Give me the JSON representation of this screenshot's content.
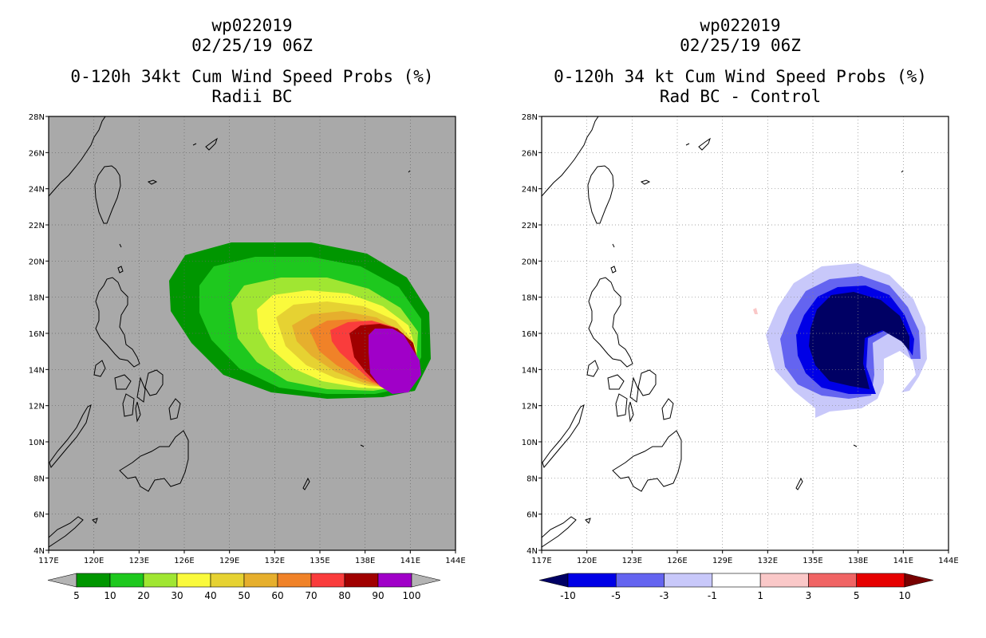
{
  "left_panel": {
    "title_storm": "wp022019",
    "title_date": "02/25/19 06Z",
    "title_main": "0-120h 34kt Cum Wind Speed Probs (%)",
    "title_sub": "Radii BC",
    "lat_labels": [
      "28N",
      "26N",
      "24N",
      "22N",
      "20N",
      "18N",
      "16N",
      "14N",
      "12N",
      "10N",
      "8N",
      "6N",
      "4N"
    ],
    "lon_labels": [
      "117E",
      "120E",
      "123E",
      "126E",
      "129E",
      "132E",
      "135E",
      "138E",
      "141E",
      "144E"
    ],
    "colorbar": {
      "colors": [
        "#009600",
        "#1ec81e",
        "#a0e632",
        "#fafa3c",
        "#e6d232",
        "#e6af2d",
        "#f08228",
        "#fa3c3c",
        "#a00000",
        "#a000c8"
      ],
      "labels": [
        "5",
        "10",
        "20",
        "30",
        "40",
        "50",
        "60",
        "70",
        "80",
        "90",
        "100"
      ],
      "under_color": "#b4b4b4",
      "over_color": "#b4b4b4"
    },
    "background_color": "#a9a9a9"
  },
  "right_panel": {
    "title_storm": "wp022019",
    "title_date": "02/25/19 06Z",
    "title_main": "0-120h 34 kt Cum Wind Speed Probs (%)",
    "title_sub": "Rad BC - Control",
    "lat_labels": [
      "28N",
      "26N",
      "24N",
      "22N",
      "20N",
      "18N",
      "16N",
      "14N",
      "12N",
      "10N",
      "8N",
      "6N",
      "4N"
    ],
    "lon_labels": [
      "117E",
      "120E",
      "123E",
      "126E",
      "129E",
      "132E",
      "135E",
      "138E",
      "141E",
      "144E"
    ],
    "colorbar": {
      "colors": [
        "#0000e6",
        "#6464f0",
        "#c8c8fa",
        "#ffffff",
        "#fac8c8",
        "#f06464",
        "#e60000"
      ],
      "labels": [
        "-10",
        "-5",
        "-3",
        "-1",
        "1",
        "3",
        "5",
        "10"
      ],
      "under_color": "#000064",
      "over_color": "#780000"
    },
    "background_color": "#ffffff"
  }
}
